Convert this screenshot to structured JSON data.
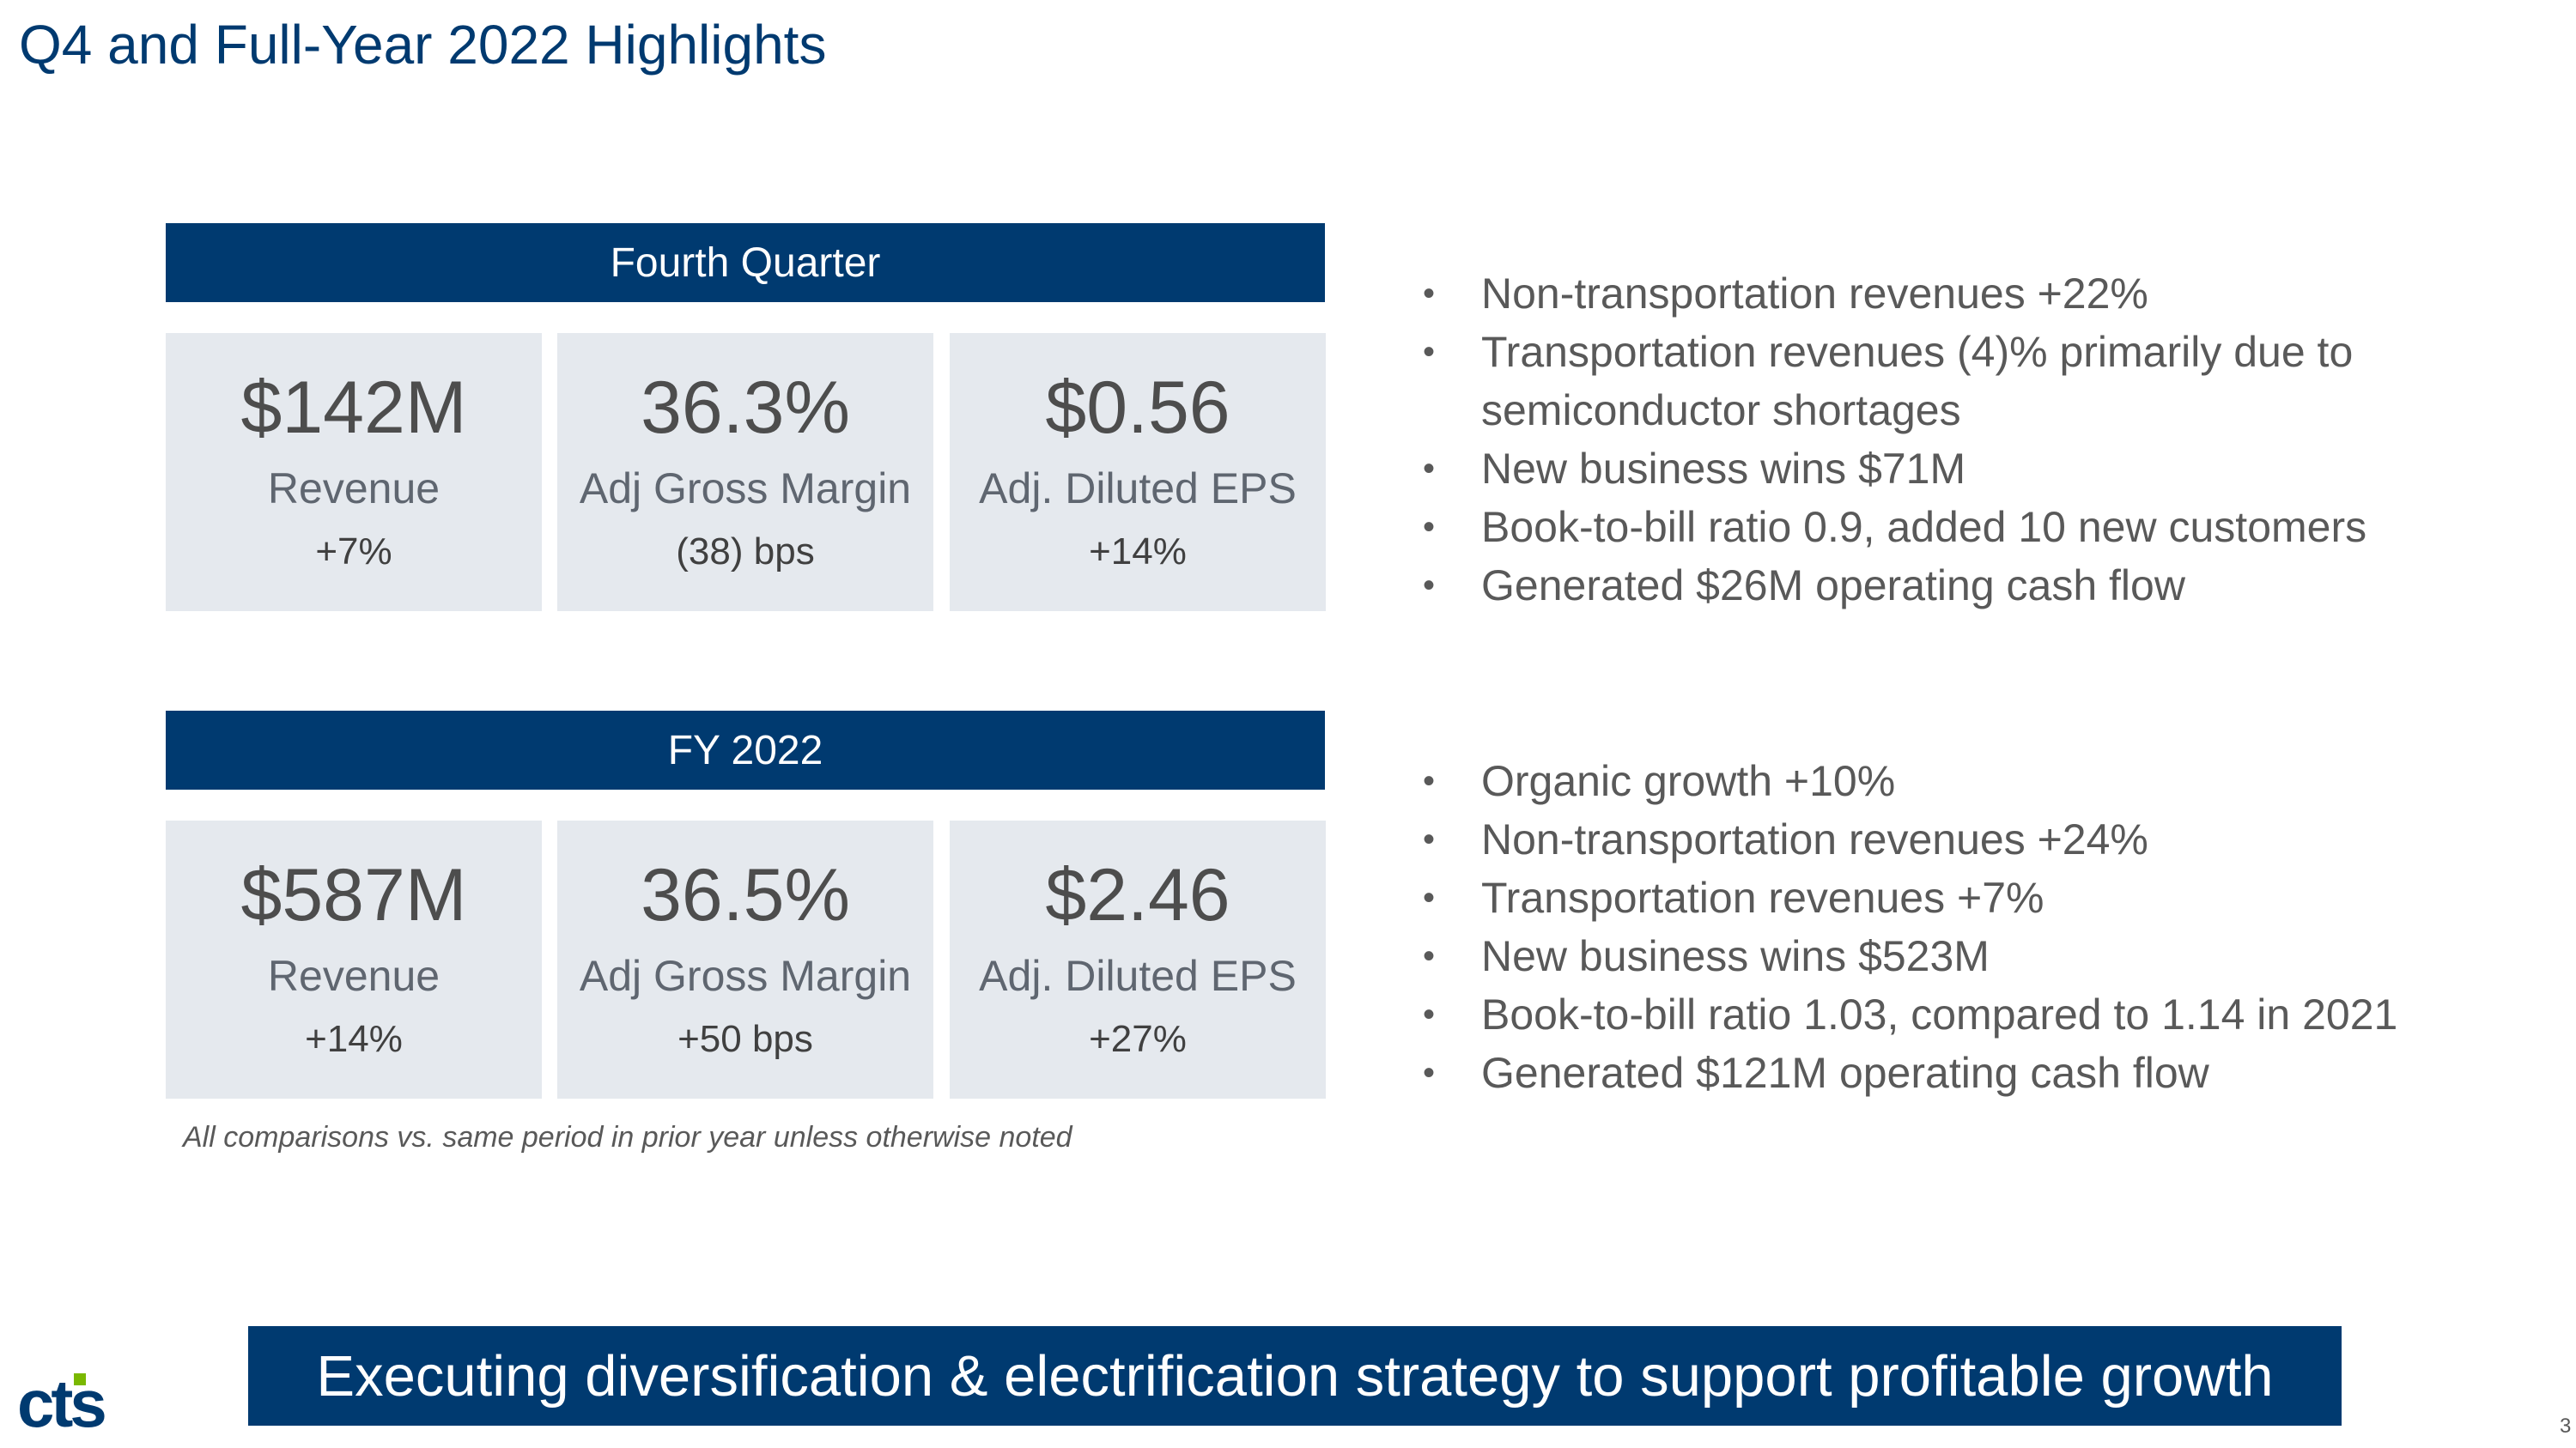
{
  "title": "Q4 and Full-Year 2022 Highlights",
  "q4": {
    "header": "Fourth Quarter",
    "cards": [
      {
        "value": "$142M",
        "label": "Revenue",
        "change": "+7%"
      },
      {
        "value": "36.3%",
        "label": "Adj Gross Margin",
        "change": "(38) bps"
      },
      {
        "value": "$0.56",
        "label": "Adj. Diluted EPS",
        "change": "+14%"
      }
    ],
    "bullets": [
      "Non-transportation revenues +22%",
      "Transportation revenues (4)% primarily due to",
      "semiconductor shortages",
      "New business wins $71M",
      "Book-to-bill ratio 0.9, added 10 new customers",
      "Generated $26M operating cash flow"
    ]
  },
  "fy": {
    "header": "FY 2022",
    "cards": [
      {
        "value": "$587M",
        "label": "Revenue",
        "change": "+14%"
      },
      {
        "value": "36.5%",
        "label": "Adj Gross Margin",
        "change": "+50 bps"
      },
      {
        "value": "$2.46",
        "label": "Adj. Diluted EPS",
        "change": "+27%"
      }
    ],
    "bullets": [
      "Organic growth +10%",
      "Non-transportation revenues +24%",
      "Transportation revenues +7%",
      "New business wins $523M",
      "Book-to-bill ratio 1.03, compared to 1.14 in 2021",
      "Generated $121M operating cash flow"
    ]
  },
  "footnote": "All comparisons vs. same period in prior year unless otherwise noted",
  "banner": "Executing diversification & electrification strategy to support profitable growth",
  "logo": {
    "text": "cts",
    "icon": "cts-logo-icon"
  },
  "page_number": "3",
  "colors": {
    "navy": "#003a70",
    "card_bg": "#e5e9ee",
    "logo_green": "#7ab800"
  }
}
